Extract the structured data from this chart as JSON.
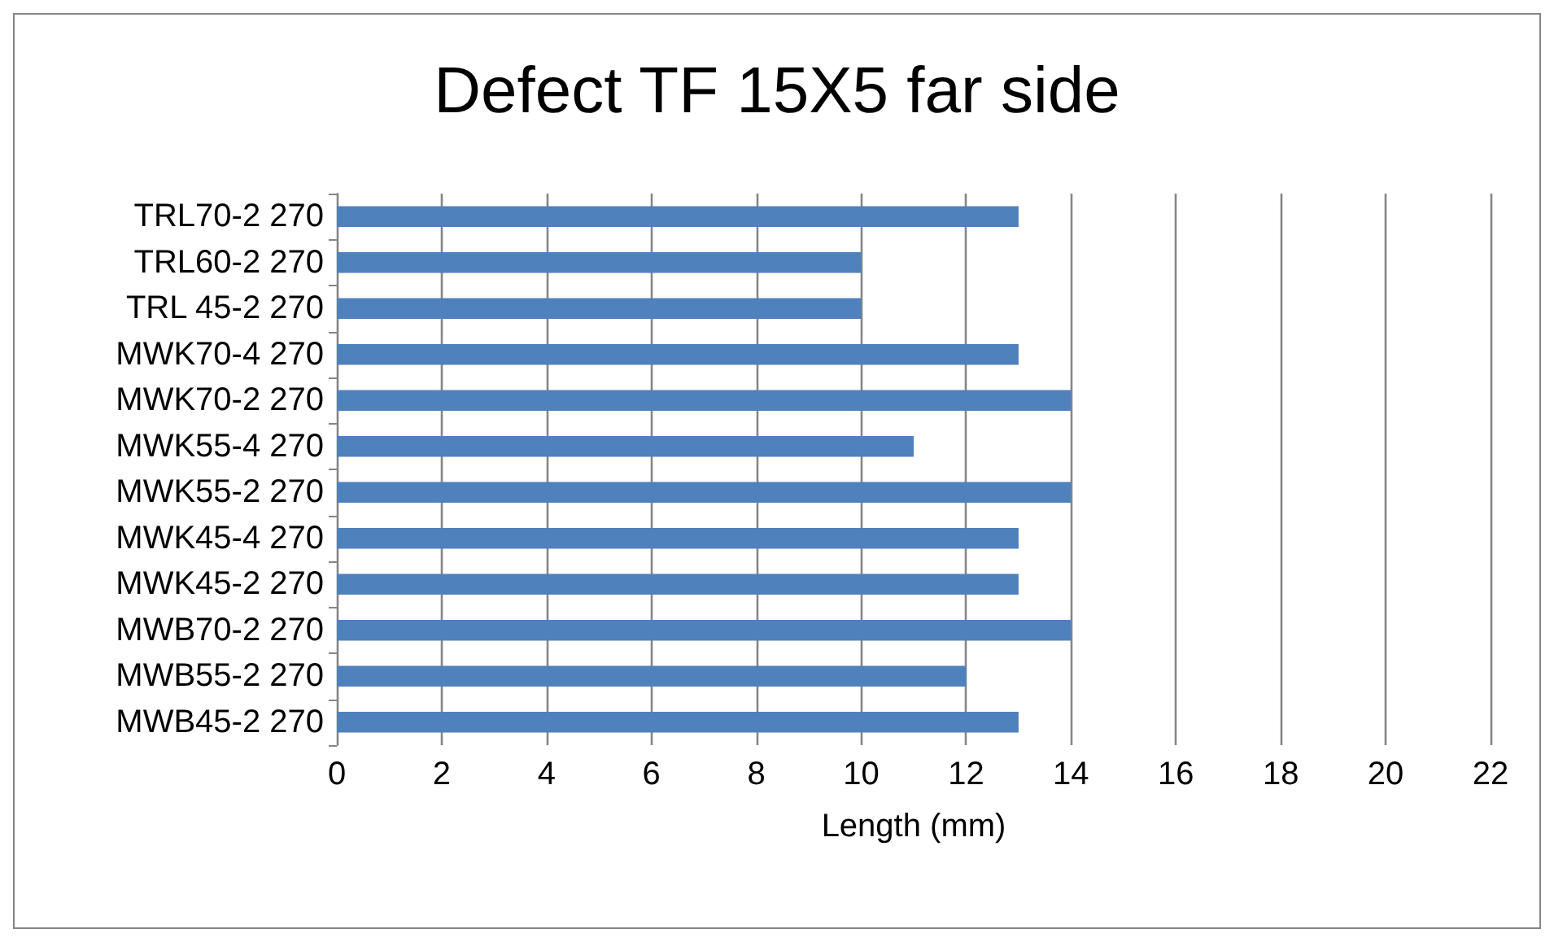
{
  "chart_data": {
    "type": "bar",
    "orientation": "horizontal",
    "title": "Defect TF 15X5 far side",
    "xlabel": "Length (mm)",
    "categories": [
      "TRL70-2 270",
      "TRL60-2 270",
      "TRL 45-2 270",
      "MWK70-4 270",
      "MWK70-2 270",
      "MWK55-4 270",
      "MWK55-2 270",
      "MWK45-4 270",
      "MWK45-2 270",
      "MWB70-2 270",
      "MWB55-2 270",
      "MWB45-2 270"
    ],
    "values": [
      13,
      10,
      10,
      13,
      14,
      11,
      14,
      13,
      13,
      14,
      12,
      13
    ],
    "color": "#4f81bd",
    "xlim": [
      0,
      22
    ],
    "xticks": [
      0,
      2,
      4,
      6,
      8,
      10,
      12,
      14,
      16,
      18,
      20,
      22
    ],
    "grid": "x"
  }
}
